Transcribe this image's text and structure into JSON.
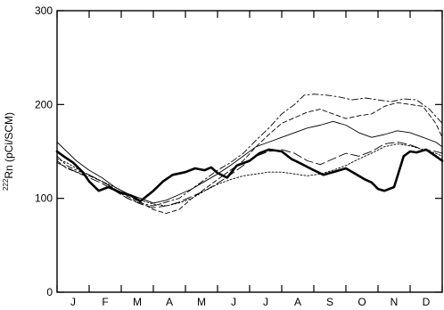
{
  "chart_data": {
    "type": "line",
    "title": "",
    "xlabel": "",
    "ylabel": "²²²Rn (pCi/SCM)",
    "ylabel_parts": {
      "sup": "222",
      "main": "Rn (pCi/SCM)"
    },
    "xlim": [
      0,
      12
    ],
    "ylim": [
      0,
      300
    ],
    "yticks": [
      0,
      100,
      200,
      300
    ],
    "x_tick_labels": [
      "J",
      "F",
      "M",
      "A",
      "M",
      "J",
      "J",
      "A",
      "S",
      "O",
      "N",
      "D"
    ],
    "x_tick_positions": [
      0.5,
      1.5,
      2.5,
      3.5,
      4.5,
      5.5,
      6.5,
      7.5,
      8.5,
      9.5,
      10.5,
      11.5
    ],
    "grid": false,
    "legend": "none",
    "series": [
      {
        "style": "thick",
        "x": [
          0,
          0.2,
          0.5,
          0.8,
          1.0,
          1.3,
          1.6,
          2.0,
          2.3,
          2.6,
          3.0,
          3.3,
          3.6,
          4.0,
          4.3,
          4.6,
          4.8,
          5.0,
          5.3,
          5.6,
          6.0,
          6.3,
          6.6,
          7.0,
          7.3,
          7.6,
          8.0,
          8.3,
          8.6,
          9.0,
          9.3,
          9.6,
          9.8,
          10.0,
          10.2,
          10.5,
          10.8,
          11.0,
          11.2,
          11.5,
          11.8,
          12.0
        ],
        "y": [
          150,
          145,
          138,
          128,
          118,
          108,
          112,
          106,
          103,
          97,
          108,
          118,
          125,
          128,
          132,
          130,
          133,
          127,
          122,
          135,
          140,
          148,
          152,
          150,
          142,
          137,
          130,
          125,
          128,
          132,
          126,
          120,
          117,
          110,
          108,
          112,
          145,
          150,
          149,
          152,
          145,
          140
        ]
      },
      {
        "style": "dash-dot",
        "x": [
          0,
          0.3,
          0.6,
          1.0,
          1.4,
          1.8,
          2.2,
          2.6,
          3.0,
          3.4,
          3.8,
          4.2,
          4.6,
          5.0,
          5.4,
          5.8,
          6.2,
          6.6,
          7.0,
          7.4,
          7.7,
          8.0,
          8.4,
          8.8,
          9.2,
          9.6,
          10.0,
          10.4,
          10.8,
          11.2,
          11.6,
          12.0
        ],
        "y": [
          145,
          135,
          130,
          125,
          118,
          110,
          100,
          95,
          92,
          96,
          100,
          110,
          120,
          130,
          138,
          148,
          162,
          175,
          190,
          200,
          210,
          211,
          210,
          208,
          205,
          207,
          205,
          203,
          206,
          205,
          195,
          180
        ]
      },
      {
        "style": "thin-dash",
        "x": [
          0,
          0.3,
          0.6,
          1.0,
          1.4,
          1.8,
          2.2,
          2.6,
          3.0,
          3.4,
          3.8,
          4.2,
          4.6,
          5.0,
          5.4,
          5.8,
          6.2,
          6.6,
          7.0,
          7.4,
          7.8,
          8.2,
          8.6,
          9.0,
          9.4,
          9.8,
          10.2,
          10.6,
          11.0,
          11.4,
          11.8,
          12.0
        ],
        "y": [
          140,
          132,
          128,
          124,
          118,
          110,
          102,
          96,
          88,
          84,
          88,
          100,
          110,
          120,
          130,
          140,
          155,
          168,
          180,
          186,
          192,
          195,
          190,
          185,
          188,
          190,
          198,
          202,
          200,
          198,
          180,
          165
        ]
      },
      {
        "style": "thin",
        "x": [
          0,
          0.3,
          0.6,
          1.0,
          1.4,
          1.8,
          2.2,
          2.6,
          3.0,
          3.4,
          3.8,
          4.2,
          4.6,
          5.0,
          5.4,
          5.8,
          6.2,
          6.6,
          7.0,
          7.4,
          7.8,
          8.2,
          8.6,
          9.0,
          9.4,
          9.8,
          10.2,
          10.6,
          11.0,
          11.4,
          11.8,
          12.0
        ],
        "y": [
          160,
          150,
          140,
          130,
          122,
          112,
          105,
          100,
          95,
          98,
          104,
          110,
          118,
          126,
          135,
          145,
          155,
          160,
          165,
          170,
          175,
          178,
          182,
          178,
          170,
          165,
          168,
          172,
          170,
          165,
          160,
          155
        ]
      },
      {
        "style": "long-dash",
        "x": [
          0,
          0.3,
          0.6,
          1.0,
          1.4,
          1.8,
          2.2,
          2.6,
          3.0,
          3.4,
          3.8,
          4.2,
          4.6,
          5.0,
          5.4,
          5.8,
          6.2,
          6.6,
          7.0,
          7.4,
          7.8,
          8.2,
          8.6,
          9.0,
          9.4,
          9.8,
          10.2,
          10.6,
          11.0,
          11.4,
          11.8,
          12.0
        ],
        "y": [
          138,
          133,
          128,
          122,
          116,
          108,
          100,
          94,
          90,
          92,
          96,
          102,
          108,
          116,
          125,
          135,
          145,
          150,
          152,
          148,
          140,
          136,
          142,
          148,
          145,
          150,
          158,
          160,
          157,
          152,
          150,
          148
        ]
      },
      {
        "style": "thin-dot",
        "x": [
          0,
          0.3,
          0.6,
          1.0,
          1.4,
          1.8,
          2.2,
          2.6,
          3.0,
          3.4,
          3.8,
          4.2,
          4.6,
          5.0,
          5.4,
          5.8,
          6.2,
          6.6,
          7.0,
          7.4,
          7.8,
          8.2,
          8.6,
          9.0,
          9.4,
          9.8,
          10.2,
          10.6,
          11.0,
          11.4,
          11.8,
          12.0
        ],
        "y": [
          142,
          138,
          132,
          125,
          118,
          112,
          105,
          98,
          94,
          92,
          95,
          100,
          108,
          115,
          120,
          124,
          126,
          128,
          128,
          126,
          124,
          126,
          130,
          135,
          142,
          148,
          155,
          158,
          156,
          152,
          148,
          145
        ]
      }
    ]
  }
}
